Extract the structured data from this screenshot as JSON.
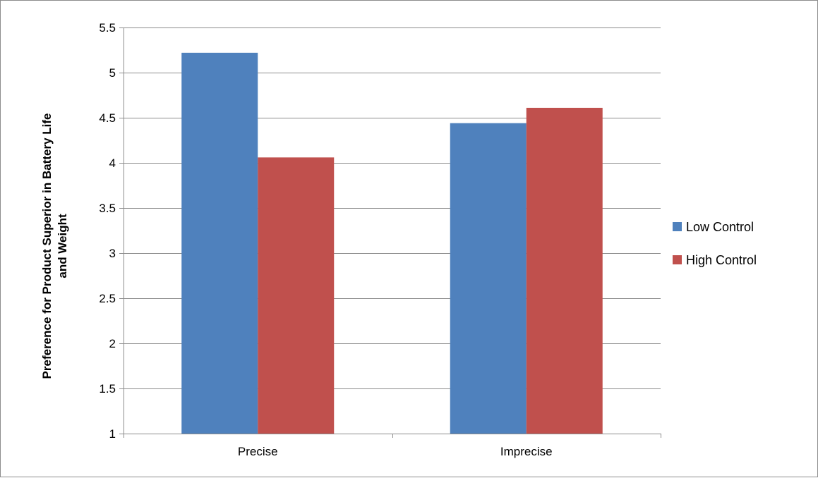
{
  "chart_data": {
    "type": "bar",
    "title": "",
    "xlabel": "",
    "ylabel": "Preference for Product Superior in Battery Life and Weight",
    "ylabel_lines": [
      "Preference for Product Superior in Battery Life",
      "and Weight"
    ],
    "categories": [
      "Precise",
      "Imprecise"
    ],
    "series": [
      {
        "name": "Low Control",
        "values": [
          5.22,
          4.44
        ],
        "color": "#4F81BD"
      },
      {
        "name": "High Control",
        "values": [
          4.06,
          4.61
        ],
        "color": "#C0504D"
      }
    ],
    "ylim": [
      1,
      5.5
    ],
    "yticks": [
      1,
      1.5,
      2,
      2.5,
      3,
      3.5,
      4,
      4.5,
      5,
      5.5
    ],
    "ytick_labels": [
      "1",
      "1.5",
      "2",
      "2.5",
      "3",
      "3.5",
      "4",
      "4.5",
      "5",
      "5.5"
    ],
    "grid": true,
    "legend_position": "right"
  }
}
